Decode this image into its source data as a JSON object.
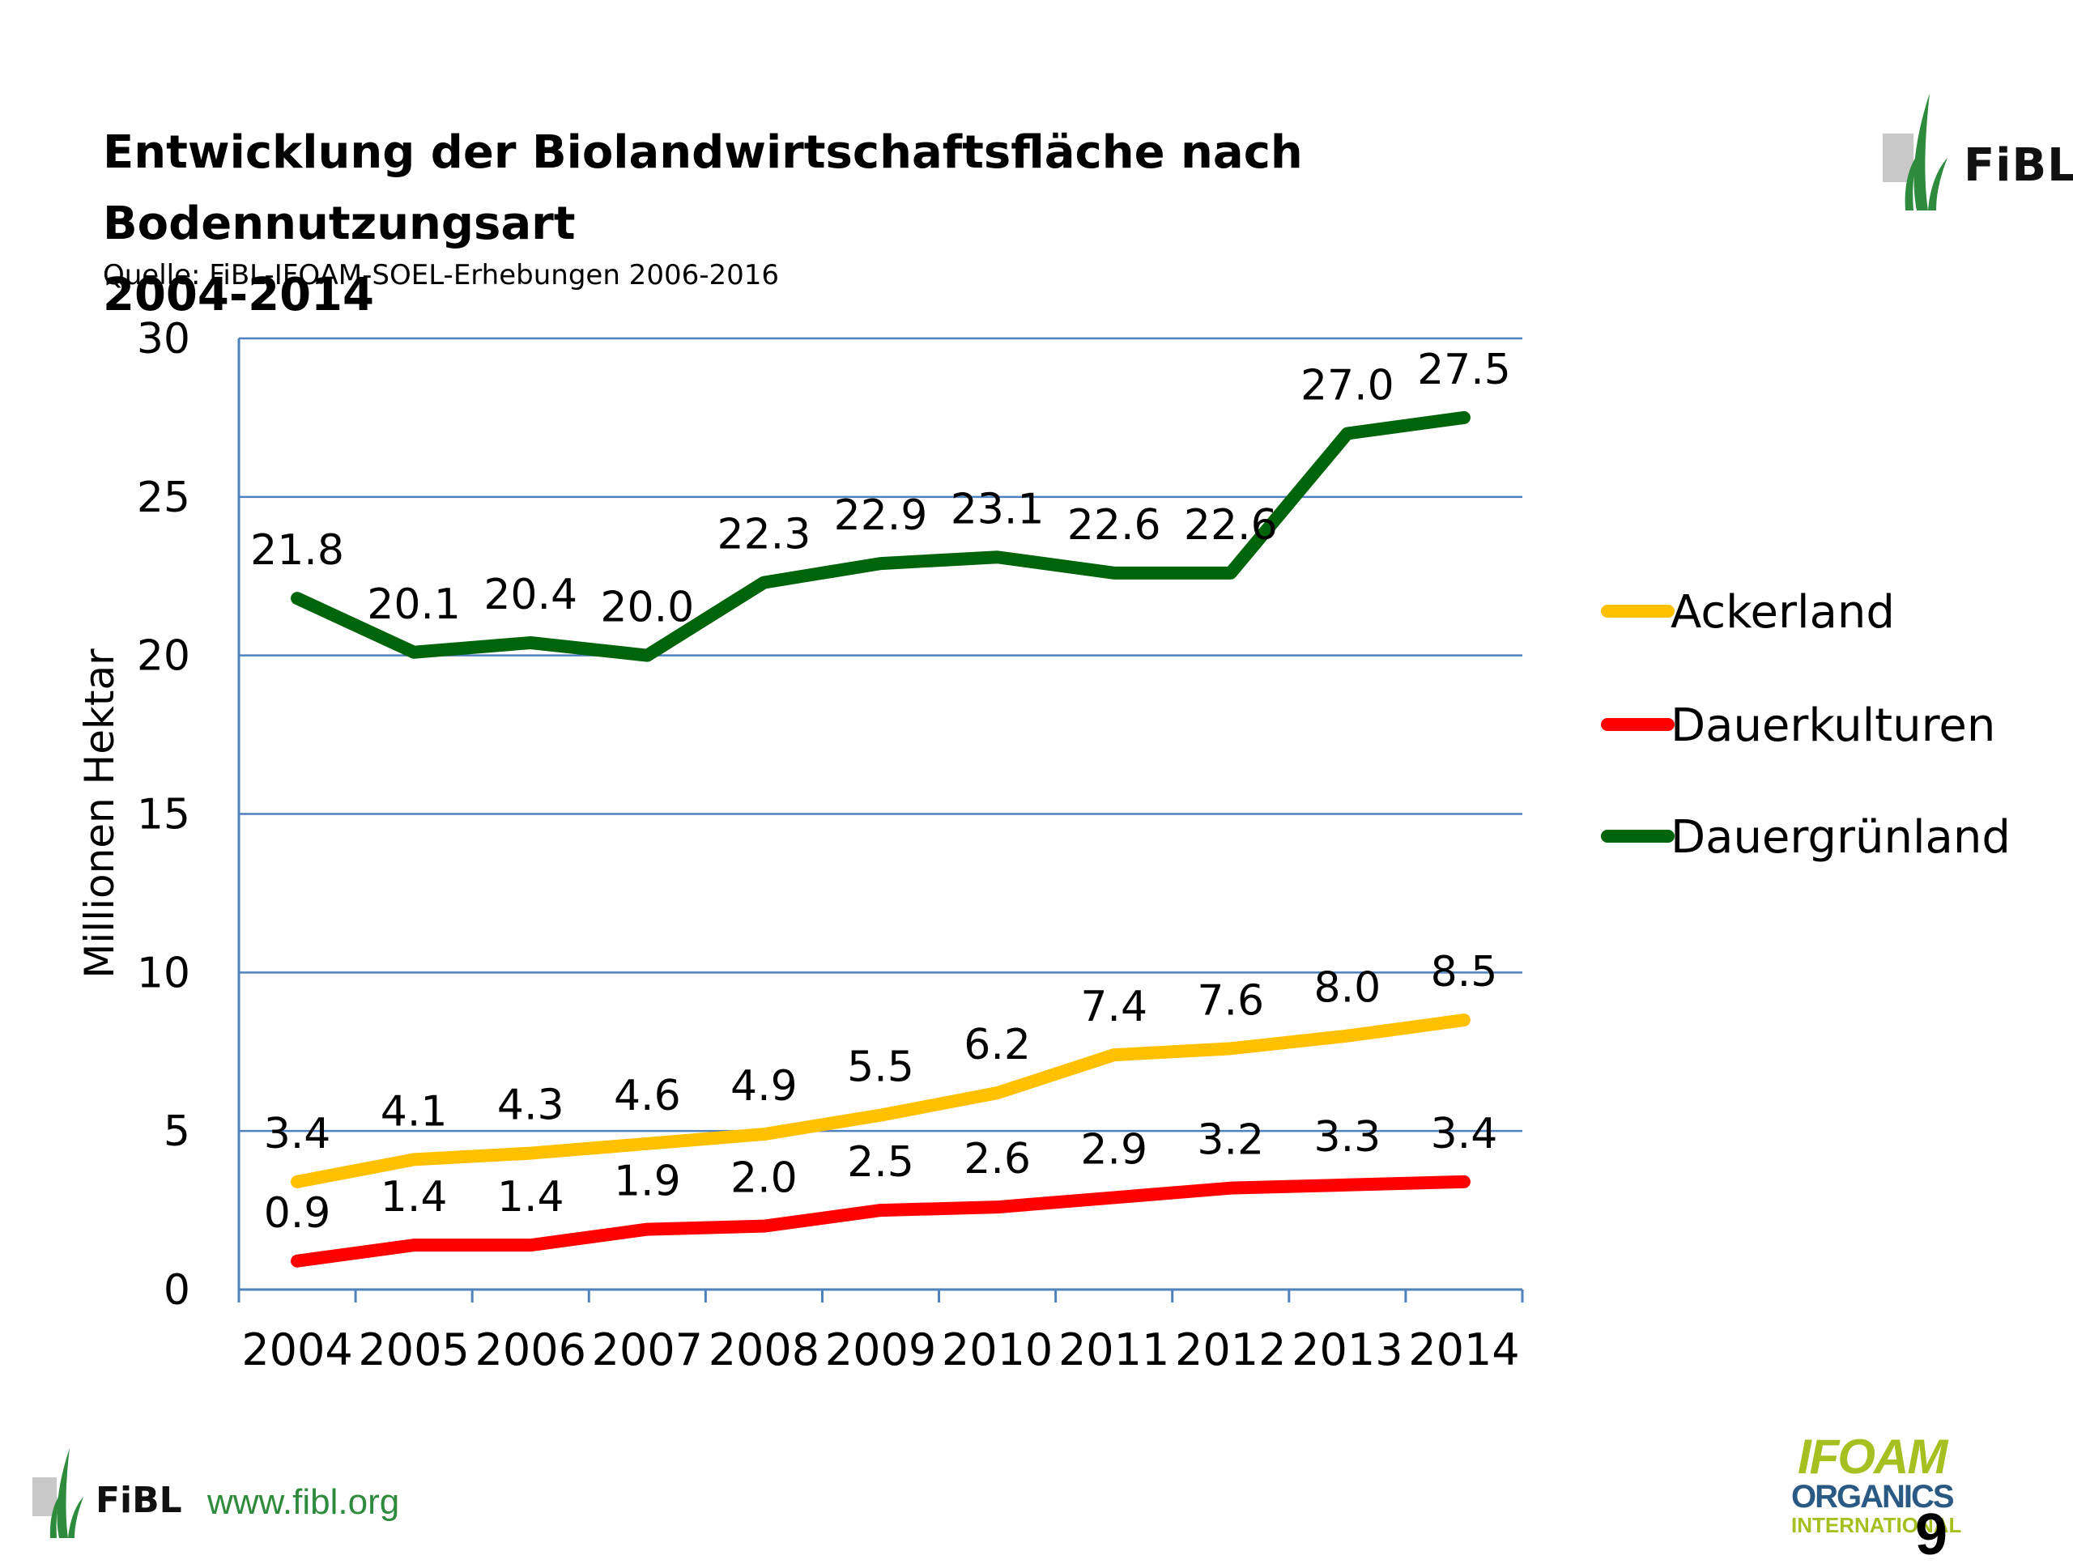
{
  "header": {
    "title_line1": "Entwicklung der Biolandwirtschaftsfläche nach Bodennutzungsart",
    "title_line2": "2004-2014",
    "source": "Quelle: FiBL-IFOAM-SOEL-Erhebungen 2006-2016"
  },
  "footer": {
    "fibl_word": "FiBL",
    "url": "www.fibl.org",
    "ifoam_line1": "IFOAM",
    "ifoam_line2": "ORGANICS",
    "ifoam_line3": "INTERNATIONAL",
    "page_number": "9"
  },
  "logo": {
    "fibl_word": "FiBL",
    "fibl_icon": "fibl-leaf-logo"
  },
  "colors": {
    "ackerland": "#ffc000",
    "dauerkulturen": "#ff0000",
    "dauergruenland": "#00640a",
    "grid": "#4f81bd",
    "fibl_green": "#2e8b3d"
  },
  "chart_data": {
    "type": "line",
    "title": "Entwicklung der Biolandwirtschaftsfläche nach Bodennutzungsart 2004-2014",
    "subtitle": "Quelle: FiBL-IFOAM-SOEL-Erhebungen 2006-2016",
    "ylabel": "Millionen Hektar",
    "xlabel": "",
    "ylim": [
      0,
      30
    ],
    "yticks": [
      "0",
      "5",
      "10",
      "15",
      "20",
      "25",
      "30"
    ],
    "grid": true,
    "legend_position": "right",
    "categories": [
      "2004",
      "2005",
      "2006",
      "2007",
      "2008",
      "2009",
      "2010",
      "2011",
      "2012",
      "2013",
      "2014"
    ],
    "series": [
      {
        "name": "Ackerland",
        "color": "#ffc000",
        "values": [
          3.4,
          4.1,
          4.3,
          4.6,
          4.9,
          5.5,
          6.2,
          7.4,
          7.6,
          8.0,
          8.5
        ],
        "labels": [
          "3.4",
          "4.1",
          "4.3",
          "4.6",
          "4.9",
          "5.5",
          "6.2",
          "7.4",
          "7.6",
          "8.0",
          "8.5"
        ]
      },
      {
        "name": "Dauerkulturen",
        "color": "#ff0000",
        "values": [
          0.9,
          1.4,
          1.4,
          1.9,
          2.0,
          2.5,
          2.6,
          2.9,
          3.2,
          3.3,
          3.4
        ],
        "labels": [
          "0.9",
          "1.4",
          "1.4",
          "1.9",
          "2.0",
          "2.5",
          "2.6",
          "2.9",
          "3.2",
          "3.3",
          "3.4"
        ]
      },
      {
        "name": "Dauergrünland",
        "color": "#00640a",
        "values": [
          21.8,
          20.1,
          20.4,
          20.0,
          22.3,
          22.9,
          23.1,
          22.6,
          22.6,
          27.0,
          27.5
        ],
        "labels": [
          "21.8",
          "20.1",
          "20.4",
          "20.0",
          "22.3",
          "22.9",
          "23.1",
          "22.6",
          "22.6",
          "27.0",
          "27.5"
        ]
      }
    ]
  }
}
